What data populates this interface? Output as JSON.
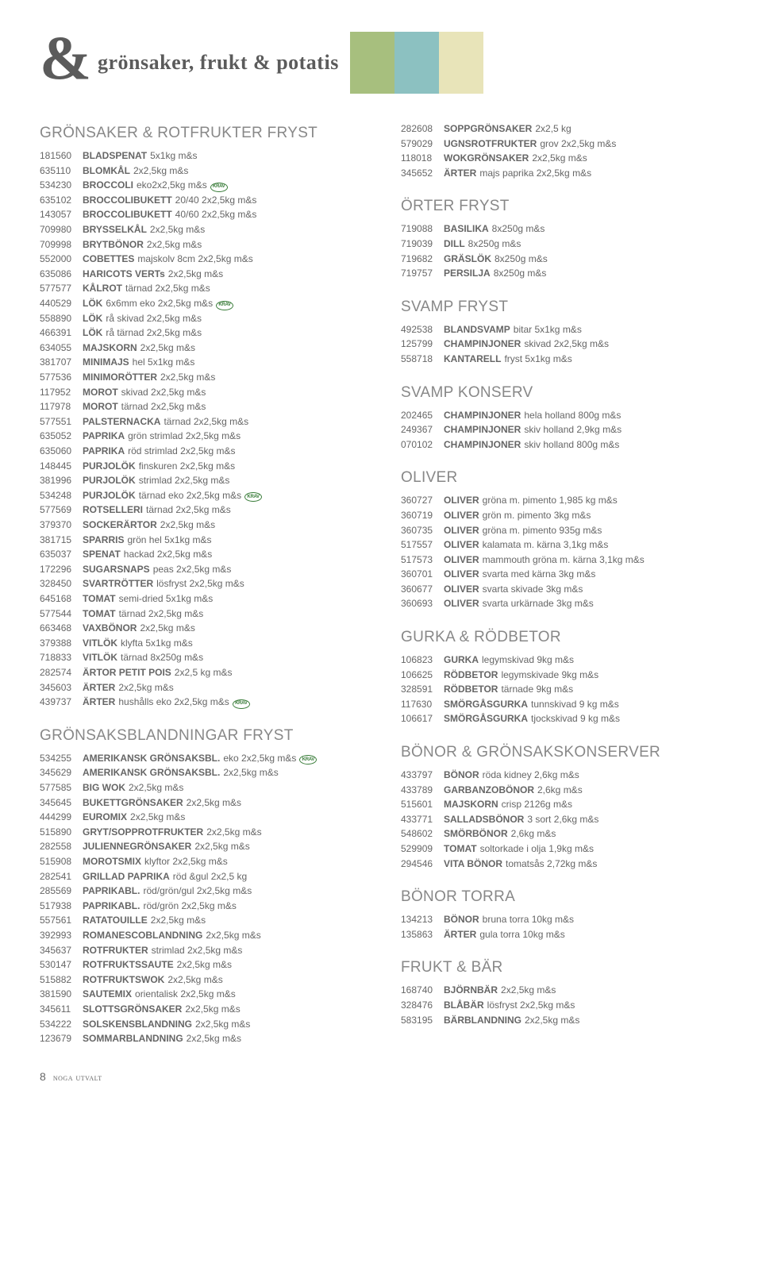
{
  "header": {
    "amp": "&",
    "title": "grönsaker, frukt & potatis",
    "swatches": [
      "#a7bf7e",
      "#8cc1c1",
      "#e8e4b9"
    ]
  },
  "left": [
    {
      "title": "GRÖNSAKER & ROTFRUKTER FRYST",
      "rows": [
        {
          "sku": "181560",
          "name": "BLADSPENAT",
          "desc": "5x1kg m&s"
        },
        {
          "sku": "635110",
          "name": "BLOMKÅL",
          "desc": "2x2,5kg m&s"
        },
        {
          "sku": "534230",
          "name": "BROCCOLI",
          "desc": "eko2x2,5kg m&s",
          "krav": true
        },
        {
          "sku": "635102",
          "name": "BROCCOLIBUKETT",
          "desc": "20/40 2x2,5kg m&s"
        },
        {
          "sku": "143057",
          "name": "BROCCOLIBUKETT",
          "desc": "40/60 2x2,5kg m&s"
        },
        {
          "sku": "709980",
          "name": "BRYSSELKÅL",
          "desc": "2x2,5kg m&s"
        },
        {
          "sku": "709998",
          "name": "BRYTBÖNOR",
          "desc": "2x2,5kg m&s"
        },
        {
          "sku": "552000",
          "name": "COBETTES",
          "desc": "majskolv 8cm 2x2,5kg m&s"
        },
        {
          "sku": "635086",
          "name": "HARICOTS VERTs",
          "desc": "2x2,5kg m&s"
        },
        {
          "sku": "577577",
          "name": "KÅLROT",
          "desc": "tärnad 2x2,5kg m&s"
        },
        {
          "sku": "440529",
          "name": "LÖK",
          "desc": "6x6mm eko 2x2,5kg m&s",
          "krav": true
        },
        {
          "sku": "558890",
          "name": "LÖK",
          "desc": "rå skivad 2x2,5kg m&s"
        },
        {
          "sku": "466391",
          "name": "LÖK",
          "desc": "rå tärnad 2x2,5kg m&s"
        },
        {
          "sku": "634055",
          "name": "MAJSKORN",
          "desc": "2x2,5kg m&s"
        },
        {
          "sku": "381707",
          "name": "MINIMAJS",
          "desc": "hel 5x1kg m&s"
        },
        {
          "sku": "577536",
          "name": "MINIMORÖTTER",
          "desc": "2x2,5kg m&s"
        },
        {
          "sku": "117952",
          "name": "MOROT",
          "desc": "skivad 2x2,5kg m&s"
        },
        {
          "sku": "117978",
          "name": "MOROT",
          "desc": "tärnad 2x2,5kg m&s"
        },
        {
          "sku": "577551",
          "name": "PALSTERNACKA",
          "desc": "tärnad 2x2,5kg m&s"
        },
        {
          "sku": "635052",
          "name": "PAPRIKA",
          "desc": "grön strimlad 2x2,5kg m&s"
        },
        {
          "sku": "635060",
          "name": "PAPRIKA",
          "desc": "röd strimlad 2x2,5kg m&s"
        },
        {
          "sku": "148445",
          "name": "PURJOLÖK",
          "desc": "finskuren 2x2,5kg m&s"
        },
        {
          "sku": "381996",
          "name": "PURJOLÖK",
          "desc": "strimlad 2x2,5kg m&s"
        },
        {
          "sku": "534248",
          "name": "PURJOLÖK",
          "desc": "tärnad eko 2x2,5kg m&s",
          "krav": true
        },
        {
          "sku": "577569",
          "name": "ROTSELLERI",
          "desc": "tärnad 2x2,5kg m&s"
        },
        {
          "sku": "379370",
          "name": "SOCKERÄRTOR",
          "desc": "2x2,5kg m&s"
        },
        {
          "sku": "381715",
          "name": "SPARRIS",
          "desc": "grön hel 5x1kg m&s"
        },
        {
          "sku": "635037",
          "name": "SPENAT",
          "desc": "hackad 2x2,5kg m&s"
        },
        {
          "sku": "172296",
          "name": "SUGARSNAPS",
          "desc": "peas 2x2,5kg m&s"
        },
        {
          "sku": "328450",
          "name": "SVARTRÖTTER",
          "desc": "lösfryst 2x2,5kg m&s"
        },
        {
          "sku": "645168",
          "name": "TOMAT",
          "desc": "semi-dried 5x1kg m&s"
        },
        {
          "sku": "577544",
          "name": "TOMAT",
          "desc": "tärnad 2x2,5kg m&s"
        },
        {
          "sku": "663468",
          "name": "VAXBÖNOR",
          "desc": "2x2,5kg m&s"
        },
        {
          "sku": "379388",
          "name": "VITLÖK",
          "desc": "klyfta 5x1kg m&s"
        },
        {
          "sku": "718833",
          "name": "VITLÖK",
          "desc": "tärnad 8x250g m&s"
        },
        {
          "sku": "282574",
          "name": "ÄRTOR PETIT POIS",
          "desc": "2x2,5 kg m&s"
        },
        {
          "sku": "345603",
          "name": "ÄRTER",
          "desc": "2x2,5kg m&s"
        },
        {
          "sku": "439737",
          "name": "ÄRTER",
          "desc": "hushålls eko 2x2,5kg m&s",
          "krav": true
        }
      ]
    },
    {
      "title": "GRÖNSAKSBLANDNINGAR FRYST",
      "rows": [
        {
          "sku": "534255",
          "name": "AMERIKANSK GRÖNSAKSBL.",
          "desc": "eko 2x2,5kg m&s",
          "krav": true
        },
        {
          "sku": "345629",
          "name": "AMERIKANSK GRÖNSAKSBL.",
          "desc": "2x2,5kg m&s"
        },
        {
          "sku": "577585",
          "name": "BIG WOK",
          "desc": "2x2,5kg m&s"
        },
        {
          "sku": "345645",
          "name": "BUKETTGRÖNSAKER",
          "desc": "2x2,5kg m&s"
        },
        {
          "sku": "444299",
          "name": "EUROMIX",
          "desc": "2x2,5kg m&s"
        },
        {
          "sku": "515890",
          "name": "GRYT/SOPPROTFRUKTER",
          "desc": "2x2,5kg m&s"
        },
        {
          "sku": "282558",
          "name": "JULIENNEGRÖNSAKER",
          "desc": "2x2,5kg m&s"
        },
        {
          "sku": "515908",
          "name": "MOROTSMIX",
          "desc": "klyftor 2x2,5kg m&s"
        },
        {
          "sku": "282541",
          "name": "GRILLAD PAPRIKA",
          "desc": "röd &gul 2x2,5 kg"
        },
        {
          "sku": "285569",
          "name": "PAPRIKABL.",
          "desc": "röd/grön/gul 2x2,5kg m&s"
        },
        {
          "sku": "517938",
          "name": "PAPRIKABL.",
          "desc": "röd/grön 2x2,5kg m&s"
        },
        {
          "sku": "557561",
          "name": "RATATOUILLE",
          "desc": "2x2,5kg m&s"
        },
        {
          "sku": "392993",
          "name": "ROMANESCOBLANDNING",
          "desc": "2x2,5kg m&s"
        },
        {
          "sku": "345637",
          "name": "ROTFRUKTER",
          "desc": "strimlad 2x2,5kg m&s"
        },
        {
          "sku": "530147",
          "name": "ROTFRUKTSSAUTE",
          "desc": "2x2,5kg m&s"
        },
        {
          "sku": "515882",
          "name": "ROTFRUKTSWOK",
          "desc": "2x2,5kg m&s"
        },
        {
          "sku": "381590",
          "name": "SAUTEMIX",
          "desc": "orientalisk 2x2,5kg m&s"
        },
        {
          "sku": "345611",
          "name": "SLOTTSGRÖNSAKER",
          "desc": "2x2,5kg m&s"
        },
        {
          "sku": "534222",
          "name": "SOLSKENSBLANDNING",
          "desc": "2x2,5kg m&s"
        },
        {
          "sku": "123679",
          "name": "SOMMARBLANDNING",
          "desc": "2x2,5kg m&s"
        }
      ]
    }
  ],
  "right": [
    {
      "title": null,
      "rows": [
        {
          "sku": "282608",
          "name": "SOPPGRÖNSAKER",
          "desc": "2x2,5 kg"
        },
        {
          "sku": "579029",
          "name": "UGNSROTFRUKTER",
          "desc": "grov 2x2,5kg m&s"
        },
        {
          "sku": "118018",
          "name": "WOKGRÖNSAKER",
          "desc": "2x2,5kg m&s"
        },
        {
          "sku": "345652",
          "name": "ÄRTER",
          "desc": "majs paprika 2x2,5kg m&s"
        }
      ]
    },
    {
      "title": "ÖRTER FRYST",
      "rows": [
        {
          "sku": "719088",
          "name": "BASILIKA",
          "desc": "8x250g m&s"
        },
        {
          "sku": "719039",
          "name": "DILL",
          "desc": "8x250g m&s"
        },
        {
          "sku": "719682",
          "name": "GRÄSLÖK",
          "desc": "8x250g m&s"
        },
        {
          "sku": "719757",
          "name": "PERSILJA",
          "desc": "8x250g m&s"
        }
      ]
    },
    {
      "title": "SVAMP FRYST",
      "rows": [
        {
          "sku": "492538",
          "name": "BLANDSVAMP",
          "desc": "bitar 5x1kg m&s"
        },
        {
          "sku": "125799",
          "name": "CHAMPINJONER",
          "desc": "skivad 2x2,5kg m&s"
        },
        {
          "sku": "558718",
          "name": "KANTARELL",
          "desc": "fryst 5x1kg m&s"
        }
      ]
    },
    {
      "title": "SVAMP KONSERV",
      "rows": [
        {
          "sku": "202465",
          "name": "CHAMPINJONER",
          "desc": "hela holland 800g m&s"
        },
        {
          "sku": "249367",
          "name": "CHAMPINJONER",
          "desc": "skiv holland 2,9kg m&s"
        },
        {
          "sku": "070102",
          "name": "CHAMPINJONER",
          "desc": "skiv holland 800g m&s"
        }
      ]
    },
    {
      "title": "OLIVER",
      "rows": [
        {
          "sku": "360727",
          "name": "OLIVER",
          "desc": "gröna m. pimento 1,985 kg m&s"
        },
        {
          "sku": "360719",
          "name": "OLIVER",
          "desc": "grön m. pimento 3kg  m&s"
        },
        {
          "sku": "360735",
          "name": "OLIVER",
          "desc": "gröna m. pimento 935g m&s"
        },
        {
          "sku": "517557",
          "name": "OLIVER",
          "desc": "kalamata m. kärna 3,1kg m&s"
        },
        {
          "sku": "517573",
          "name": "OLIVER",
          "desc": "mammouth gröna m. kärna 3,1kg m&s"
        },
        {
          "sku": "360701",
          "name": "OLIVER",
          "desc": "svarta med kärna 3kg m&s"
        },
        {
          "sku": "360677",
          "name": "OLIVER",
          "desc": "svarta skivade 3kg m&s"
        },
        {
          "sku": "360693",
          "name": "OLIVER",
          "desc": "svarta urkärnade 3kg m&s"
        }
      ]
    },
    {
      "title": "GURKA & RÖDBETOR",
      "rows": [
        {
          "sku": "106823",
          "name": "GURKA",
          "desc": "legymskivad 9kg m&s"
        },
        {
          "sku": "106625",
          "name": "RÖDBETOR",
          "desc": "legymskivade 9kg m&s"
        },
        {
          "sku": "328591",
          "name": "RÖDBETOR",
          "desc": "tärnade 9kg m&s"
        },
        {
          "sku": "117630",
          "name": "SMÖRGÅSGURKA",
          "desc": "tunnskivad 9 kg m&s"
        },
        {
          "sku": "106617",
          "name": "SMÖRGÅSGURKA",
          "desc": "tjockskivad 9 kg m&s"
        }
      ]
    },
    {
      "title": "BÖNOR & GRÖNSAKSKONSERVER",
      "rows": [
        {
          "sku": "433797",
          "name": "BÖNOR",
          "desc": "röda kidney 2,6kg m&s"
        },
        {
          "sku": "433789",
          "name": "GARBANZOBÖNOR",
          "desc": "2,6kg m&s"
        },
        {
          "sku": "515601",
          "name": "MAJSKORN",
          "desc": "crisp 2126g m&s"
        },
        {
          "sku": "433771",
          "name": "SALLADSBÖNOR",
          "desc": "3 sort 2,6kg m&s"
        },
        {
          "sku": "548602",
          "name": "SMÖRBÖNOR",
          "desc": "2,6kg m&s"
        },
        {
          "sku": "529909",
          "name": "TOMAT",
          "desc": "soltorkade i olja 1,9kg m&s"
        },
        {
          "sku": "294546",
          "name": "VITA BÖNOR",
          "desc": "tomatsås 2,72kg m&s"
        }
      ]
    },
    {
      "title": "BÖNOR TORRA",
      "rows": [
        {
          "sku": "134213",
          "name": "BÖNOR",
          "desc": "bruna torra 10kg m&s"
        },
        {
          "sku": "135863",
          "name": "ÄRTER",
          "desc": "gula torra 10kg m&s"
        }
      ]
    },
    {
      "title": "FRUKT & BÄR",
      "rows": [
        {
          "sku": "168740",
          "name": "BJÖRNBÄR",
          "desc": "2x2,5kg m&s"
        },
        {
          "sku": "328476",
          "name": "BLÅBÄR",
          "desc": "lösfryst 2x2,5kg m&s"
        },
        {
          "sku": "583195",
          "name": "BÄRBLANDNING",
          "desc": "2x2,5kg m&s"
        }
      ]
    }
  ],
  "footer": {
    "page": "8",
    "brand": "noga utvalt"
  }
}
